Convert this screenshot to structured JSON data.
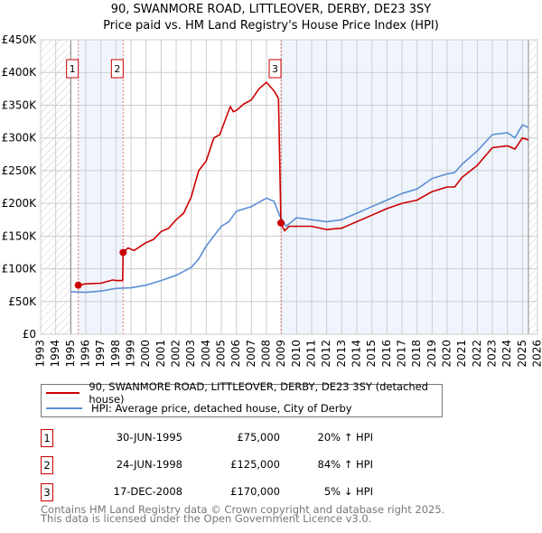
{
  "chart_data": {
    "type": "line",
    "title": "90, SWANMORE ROAD, LITTLEOVER, DERBY, DE23 3SY",
    "subtitle": "Price paid vs. HM Land Registry's House Price Index (HPI)",
    "xlim": [
      1993,
      2026
    ],
    "ylim": [
      0,
      450000
    ],
    "x_ticks": [
      "1993",
      "1994",
      "1995",
      "1996",
      "1997",
      "1998",
      "1999",
      "2000",
      "2001",
      "2002",
      "2003",
      "2004",
      "2005",
      "2006",
      "2007",
      "2008",
      "2009",
      "2010",
      "2011",
      "2012",
      "2013",
      "2014",
      "2015",
      "2016",
      "2017",
      "2018",
      "2019",
      "2020",
      "2021",
      "2022",
      "2023",
      "2024",
      "2025",
      "2026"
    ],
    "y_ticks": [
      {
        "v": 0,
        "label": "£0"
      },
      {
        "v": 50000,
        "label": "£50K"
      },
      {
        "v": 100000,
        "label": "£100K"
      },
      {
        "v": 150000,
        "label": "£150K"
      },
      {
        "v": 200000,
        "label": "£200K"
      },
      {
        "v": 250000,
        "label": "£250K"
      },
      {
        "v": 300000,
        "label": "£300K"
      },
      {
        "v": 350000,
        "label": "£350K"
      },
      {
        "v": 400000,
        "label": "£400K"
      },
      {
        "v": 450000,
        "label": "£450K"
      }
    ],
    "grid": true,
    "data_start": 1995.0,
    "data_end": 2025.4,
    "series": [
      {
        "name": "90, SWANMORE ROAD, LITTLEOVER, DERBY, DE23 3SY (detached house)",
        "color": "#cc0000",
        "x": [
          1995.5,
          1996,
          1997,
          1997.8,
          1998,
          1998.45,
          1998.48,
          1998.8,
          1999.2,
          2000,
          2000.5,
          2001,
          2001.5,
          2002,
          2002.5,
          2003,
          2003.5,
          2004,
          2004.5,
          2004.9,
          2005.3,
          2005.6,
          2005.8,
          2006,
          2006.5,
          2007,
          2007.5,
          2008,
          2008.5,
          2008.8,
          2008.96,
          2009.2,
          2009.5,
          2010,
          2011,
          2012,
          2013,
          2014,
          2015,
          2016,
          2017,
          2018,
          2019,
          2020,
          2020.5,
          2021,
          2022,
          2023,
          2024,
          2024.5,
          2025,
          2025.4
        ],
        "y": [
          75000,
          77000,
          78000,
          83000,
          82000,
          82000,
          125000,
          132000,
          128000,
          140000,
          145000,
          157000,
          162000,
          175000,
          185000,
          210000,
          250000,
          265000,
          300000,
          305000,
          330000,
          348000,
          340000,
          342000,
          352000,
          358000,
          375000,
          385000,
          372000,
          360000,
          170000,
          158000,
          165000,
          165000,
          165000,
          160000,
          162000,
          172000,
          182000,
          192000,
          200000,
          205000,
          218000,
          225000,
          225000,
          240000,
          258000,
          285000,
          288000,
          283000,
          300000,
          297000
        ]
      },
      {
        "name": "HPI: Average price, detached house, City of Derby",
        "color": "#5b8fd4",
        "x": [
          1995,
          1996,
          1997,
          1998,
          1999,
          2000,
          2001,
          2002,
          2003,
          2003.5,
          2004,
          2005,
          2005.5,
          2006,
          2007,
          2008,
          2008.5,
          2008.9,
          2009.3,
          2010,
          2011,
          2012,
          2013,
          2014,
          2015,
          2016,
          2017,
          2018,
          2019,
          2020,
          2020.5,
          2021,
          2022,
          2023,
          2024,
          2024.5,
          2025,
          2025.4
        ],
        "y": [
          65000,
          64000,
          66000,
          70000,
          71000,
          75000,
          82000,
          90000,
          102000,
          115000,
          135000,
          165000,
          172000,
          188000,
          195000,
          208000,
          203000,
          180000,
          165000,
          178000,
          175000,
          172000,
          175000,
          185000,
          195000,
          205000,
          215000,
          222000,
          238000,
          245000,
          247000,
          260000,
          280000,
          305000,
          308000,
          300000,
          320000,
          316000
        ]
      }
    ],
    "sales": [
      {
        "id": "1",
        "x": 1995.5,
        "y": 75000
      },
      {
        "id": "2",
        "x": 1998.48,
        "y": 125000
      },
      {
        "id": "3",
        "x": 2008.96,
        "y": 170000
      }
    ]
  },
  "legend": {
    "property": "90, SWANMORE ROAD, LITTLEOVER, DERBY, DE23 3SY (detached house)",
    "hpi": "HPI: Average price, detached house, City of Derby"
  },
  "transactions": [
    {
      "num": "1",
      "date": "30-JUN-1995",
      "price": "£75,000",
      "hpi": "20% ↑ HPI"
    },
    {
      "num": "2",
      "date": "24-JUN-1998",
      "price": "£125,000",
      "hpi": "84% ↑ HPI"
    },
    {
      "num": "3",
      "date": "17-DEC-2008",
      "price": "£170,000",
      "hpi": "5% ↓ HPI"
    }
  ],
  "footer": {
    "line1": "Contains HM Land Registry data © Crown copyright and database right 2025.",
    "line2": "This data is licensed under the Open Government Licence v3.0."
  }
}
